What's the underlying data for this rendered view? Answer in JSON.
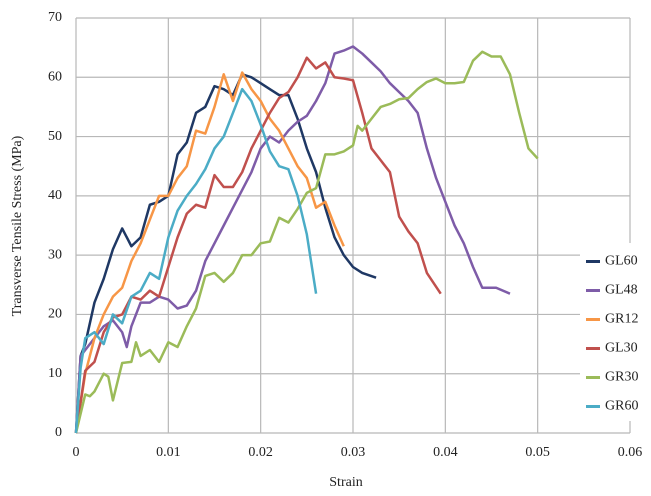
{
  "chart_data": {
    "type": "line",
    "x_label": "Strain",
    "y_label": "Transverse Tensile Stress (MPa)",
    "xlim": [
      0,
      0.06
    ],
    "xticks": [
      0,
      0.01,
      0.02,
      0.03,
      0.04,
      0.05,
      0.06
    ],
    "ylim": [
      0,
      70
    ],
    "yticks": [
      0,
      10,
      20,
      30,
      40,
      50,
      60,
      70
    ],
    "grid": true,
    "legend": "lower right",
    "series": [
      {
        "name": "GL60",
        "color": "#1f3864",
        "x": [
          0,
          0.0005,
          0.001,
          0.002,
          0.003,
          0.004,
          0.005,
          0.006,
          0.007,
          0.008,
          0.009,
          0.01,
          0.011,
          0.012,
          0.013,
          0.014,
          0.015,
          0.016,
          0.017,
          0.018,
          0.019,
          0.02,
          0.021,
          0.022,
          0.023,
          0.024,
          0.025,
          0.026,
          0.027,
          0.028,
          0.029,
          0.03,
          0.031,
          0.0325
        ],
        "values": [
          0,
          13,
          15,
          22,
          26,
          31,
          34.5,
          31.5,
          33,
          38.5,
          39,
          40,
          47,
          49,
          54,
          55,
          58.5,
          58,
          57,
          60.5,
          60,
          59,
          58,
          57,
          57,
          53,
          48,
          44,
          38,
          33,
          30,
          28,
          27,
          26.2
        ]
      },
      {
        "name": "GL48",
        "color": "#7e5ca8",
        "x": [
          0,
          0.0005,
          0.001,
          0.002,
          0.003,
          0.004,
          0.005,
          0.0055,
          0.006,
          0.007,
          0.008,
          0.009,
          0.01,
          0.011,
          0.012,
          0.013,
          0.014,
          0.015,
          0.016,
          0.017,
          0.018,
          0.019,
          0.02,
          0.021,
          0.022,
          0.023,
          0.024,
          0.025,
          0.026,
          0.027,
          0.028,
          0.029,
          0.03,
          0.031,
          0.032,
          0.033,
          0.034,
          0.035,
          0.036,
          0.037,
          0.038,
          0.039,
          0.04,
          0.041,
          0.042,
          0.043,
          0.044,
          0.0455,
          0.047
        ],
        "values": [
          0,
          13,
          14,
          16,
          18,
          19,
          17,
          14.5,
          18,
          22,
          22,
          23,
          22.5,
          21,
          21.5,
          24,
          29,
          32,
          35,
          38,
          41,
          44,
          48,
          50,
          49,
          51,
          52.5,
          53.5,
          56,
          59,
          64,
          64.5,
          65.2,
          64,
          62.5,
          61,
          59,
          57.5,
          56,
          54,
          48,
          43,
          39,
          35,
          32,
          28,
          24.5,
          24.5,
          23.5
        ]
      },
      {
        "name": "GR12",
        "color": "#f79646",
        "x": [
          0,
          0.001,
          0.002,
          0.003,
          0.004,
          0.005,
          0.006,
          0.007,
          0.008,
          0.009,
          0.01,
          0.011,
          0.012,
          0.013,
          0.014,
          0.015,
          0.016,
          0.017,
          0.018,
          0.019,
          0.02,
          0.021,
          0.022,
          0.023,
          0.024,
          0.025,
          0.026,
          0.027,
          0.028,
          0.029
        ],
        "values": [
          0,
          10,
          16,
          20,
          23,
          24.5,
          29,
          32,
          36,
          40,
          40,
          43,
          45,
          51,
          50.5,
          55,
          60.5,
          56,
          60.8,
          58,
          56,
          53,
          51,
          48,
          45,
          43,
          38,
          39,
          35,
          31.5
        ]
      },
      {
        "name": "GL30",
        "color": "#c0504d",
        "x": [
          0,
          0.001,
          0.002,
          0.003,
          0.004,
          0.005,
          0.006,
          0.007,
          0.008,
          0.009,
          0.01,
          0.011,
          0.012,
          0.013,
          0.014,
          0.015,
          0.016,
          0.017,
          0.018,
          0.019,
          0.02,
          0.021,
          0.022,
          0.023,
          0.024,
          0.025,
          0.026,
          0.027,
          0.028,
          0.029,
          0.03,
          0.031,
          0.032,
          0.033,
          0.034,
          0.035,
          0.036,
          0.037,
          0.038,
          0.0395
        ],
        "values": [
          0,
          10.5,
          12,
          17,
          19.5,
          20,
          23,
          22.5,
          24,
          23,
          28,
          33,
          37,
          38.5,
          38,
          43.5,
          41.5,
          41.5,
          44,
          48,
          51,
          54,
          56.5,
          57.5,
          60,
          63.3,
          61.5,
          62.5,
          60,
          59.8,
          59.5,
          54,
          48,
          46,
          44,
          36.5,
          34,
          32,
          27,
          23.5
        ]
      },
      {
        "name": "GR30",
        "color": "#9bbb59",
        "x": [
          0,
          0.001,
          0.0015,
          0.002,
          0.003,
          0.0035,
          0.004,
          0.005,
          0.006,
          0.0065,
          0.007,
          0.008,
          0.009,
          0.01,
          0.011,
          0.012,
          0.013,
          0.014,
          0.015,
          0.016,
          0.017,
          0.018,
          0.019,
          0.02,
          0.021,
          0.022,
          0.023,
          0.024,
          0.025,
          0.026,
          0.027,
          0.028,
          0.029,
          0.03,
          0.0305,
          0.031,
          0.032,
          0.033,
          0.034,
          0.035,
          0.036,
          0.037,
          0.038,
          0.039,
          0.04,
          0.041,
          0.042,
          0.043,
          0.044,
          0.045,
          0.046,
          0.047,
          0.048,
          0.049,
          0.05
        ],
        "values": [
          0,
          6.5,
          6.2,
          7,
          10,
          9.5,
          5.5,
          11.8,
          12,
          15.3,
          13,
          14,
          12,
          15.3,
          14.5,
          18,
          21,
          26.5,
          27,
          25.5,
          27,
          30,
          30,
          32,
          32.3,
          36.3,
          35.5,
          37.8,
          40.5,
          41.3,
          47,
          47,
          47.5,
          48.5,
          51.8,
          51,
          53,
          55,
          55.5,
          56.3,
          56.5,
          58,
          59.2,
          59.8,
          59,
          59,
          59.2,
          62.8,
          64.3,
          63.5,
          63.5,
          60.5,
          54,
          48,
          46.3
        ]
      },
      {
        "name": "GR60",
        "color": "#4bacc6",
        "x": [
          0,
          0.0005,
          0.001,
          0.002,
          0.003,
          0.004,
          0.005,
          0.006,
          0.007,
          0.008,
          0.009,
          0.01,
          0.011,
          0.012,
          0.013,
          0.014,
          0.015,
          0.016,
          0.017,
          0.018,
          0.019,
          0.02,
          0.021,
          0.022,
          0.023,
          0.024,
          0.025,
          0.026
        ],
        "values": [
          0,
          11,
          16,
          17,
          15,
          20,
          18.5,
          23,
          24,
          27,
          26,
          33,
          37.5,
          40,
          42,
          44.5,
          48,
          50,
          54,
          58,
          56,
          52,
          47.5,
          45,
          44.5,
          40,
          33.5,
          23.5
        ]
      }
    ]
  }
}
